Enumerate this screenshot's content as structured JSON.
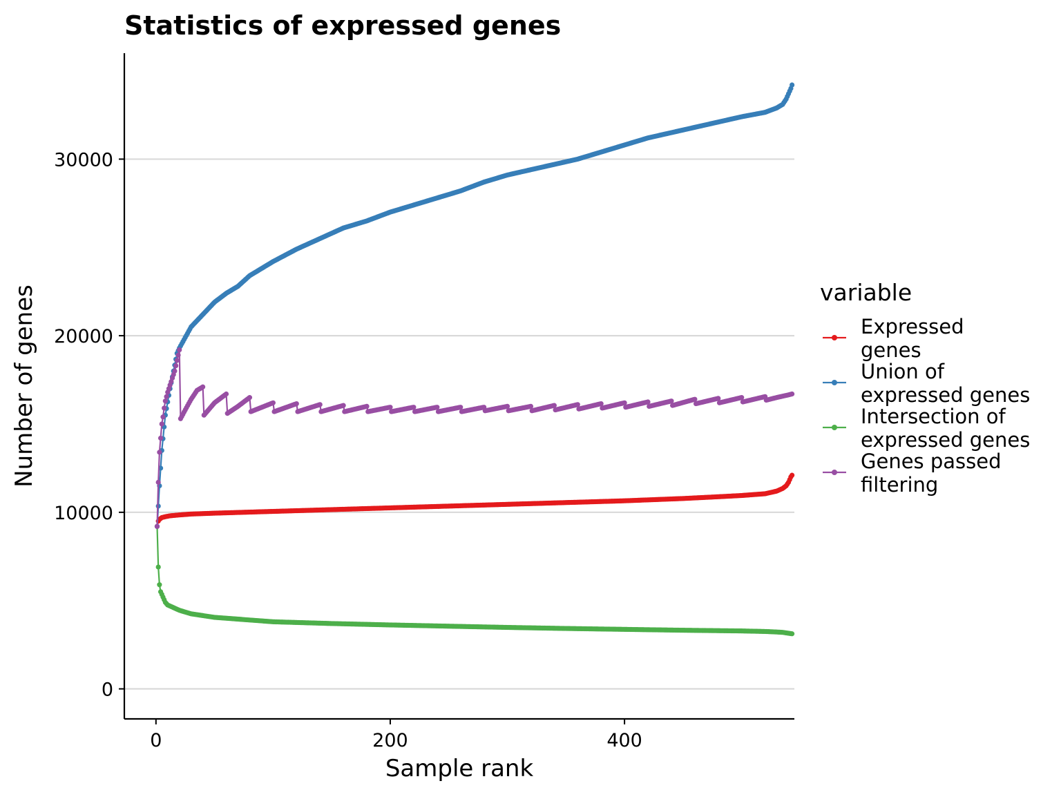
{
  "chart_data": {
    "type": "line",
    "title": "Statistics of expressed genes",
    "xlabel": "Sample rank",
    "ylabel": "Number of genes",
    "xlim": [
      -27,
      545
    ],
    "ylim": [
      -1700,
      36000
    ],
    "x_ticks": [
      0,
      200,
      400
    ],
    "y_ticks": [
      0,
      10000,
      20000,
      30000
    ],
    "x_tick_labels": [
      "0",
      "200",
      "400"
    ],
    "y_tick_labels": [
      "0",
      "10000",
      "20000",
      "30000"
    ],
    "grid": "horizontal major",
    "legend": {
      "title": "variable",
      "position": "right",
      "entries": [
        {
          "label_lines": [
            "Expressed",
            "genes"
          ],
          "color": "#E41A1C"
        },
        {
          "label_lines": [
            "Union of",
            "expressed genes"
          ],
          "color": "#377EB8"
        },
        {
          "label_lines": [
            "Intersection of",
            "expressed genes"
          ],
          "color": "#4DAF4A"
        },
        {
          "label_lines": [
            "Genes passed",
            "filtering"
          ],
          "color": "#984EA3"
        }
      ]
    },
    "n_samples": 543,
    "series": [
      {
        "name": "Expressed genes",
        "color": "#E41A1C",
        "points": [
          [
            1,
            9200
          ],
          [
            2,
            9500
          ],
          [
            3,
            9600
          ],
          [
            5,
            9700
          ],
          [
            8,
            9750
          ],
          [
            12,
            9800
          ],
          [
            20,
            9850
          ],
          [
            30,
            9900
          ],
          [
            50,
            9950
          ],
          [
            100,
            10050
          ],
          [
            150,
            10150
          ],
          [
            200,
            10250
          ],
          [
            250,
            10350
          ],
          [
            300,
            10450
          ],
          [
            350,
            10550
          ],
          [
            400,
            10650
          ],
          [
            450,
            10780
          ],
          [
            480,
            10880
          ],
          [
            500,
            10950
          ],
          [
            520,
            11050
          ],
          [
            530,
            11200
          ],
          [
            535,
            11350
          ],
          [
            538,
            11500
          ],
          [
            540,
            11700
          ],
          [
            541,
            11850
          ],
          [
            542,
            12000
          ],
          [
            543,
            12100
          ]
        ]
      },
      {
        "name": "Union of expressed genes",
        "color": "#377EB8",
        "points": [
          [
            1,
            9200
          ],
          [
            3,
            11500
          ],
          [
            5,
            13500
          ],
          [
            8,
            15500
          ],
          [
            12,
            17000
          ],
          [
            15,
            18000
          ],
          [
            18,
            19000
          ],
          [
            20,
            19300
          ],
          [
            25,
            19900
          ],
          [
            30,
            20500
          ],
          [
            40,
            21200
          ],
          [
            50,
            21900
          ],
          [
            60,
            22400
          ],
          [
            70,
            22800
          ],
          [
            80,
            23400
          ],
          [
            90,
            23800
          ],
          [
            100,
            24200
          ],
          [
            120,
            24900
          ],
          [
            140,
            25500
          ],
          [
            160,
            26100
          ],
          [
            180,
            26500
          ],
          [
            200,
            27000
          ],
          [
            220,
            27400
          ],
          [
            240,
            27800
          ],
          [
            260,
            28200
          ],
          [
            280,
            28700
          ],
          [
            300,
            29100
          ],
          [
            320,
            29400
          ],
          [
            340,
            29700
          ],
          [
            360,
            30000
          ],
          [
            380,
            30400
          ],
          [
            400,
            30800
          ],
          [
            420,
            31200
          ],
          [
            440,
            31500
          ],
          [
            460,
            31800
          ],
          [
            480,
            32100
          ],
          [
            500,
            32400
          ],
          [
            520,
            32650
          ],
          [
            530,
            32900
          ],
          [
            535,
            33100
          ],
          [
            538,
            33400
          ],
          [
            540,
            33700
          ],
          [
            542,
            34000
          ],
          [
            543,
            34200
          ]
        ]
      },
      {
        "name": "Intersection of expressed genes",
        "color": "#4DAF4A",
        "points": [
          [
            1,
            9200
          ],
          [
            2,
            6900
          ],
          [
            3,
            5900
          ],
          [
            4,
            5500
          ],
          [
            6,
            5200
          ],
          [
            8,
            4900
          ],
          [
            10,
            4750
          ],
          [
            15,
            4600
          ],
          [
            20,
            4450
          ],
          [
            30,
            4250
          ],
          [
            50,
            4050
          ],
          [
            80,
            3900
          ],
          [
            100,
            3800
          ],
          [
            150,
            3700
          ],
          [
            200,
            3620
          ],
          [
            250,
            3550
          ],
          [
            300,
            3480
          ],
          [
            350,
            3420
          ],
          [
            400,
            3370
          ],
          [
            450,
            3320
          ],
          [
            500,
            3280
          ],
          [
            520,
            3250
          ],
          [
            530,
            3220
          ],
          [
            535,
            3200
          ],
          [
            540,
            3150
          ],
          [
            543,
            3120
          ]
        ]
      },
      {
        "name": "Genes passed filtering",
        "color": "#984EA3",
        "points": [
          [
            1,
            9200
          ],
          [
            2,
            11700
          ],
          [
            3,
            13400
          ],
          [
            4,
            14200
          ],
          [
            5,
            15000
          ],
          [
            6,
            15400
          ],
          [
            7,
            15900
          ],
          [
            8,
            16300
          ],
          [
            10,
            16800
          ],
          [
            12,
            17200
          ],
          [
            14,
            17600
          ],
          [
            16,
            18000
          ],
          [
            18,
            18600
          ],
          [
            20,
            19200
          ],
          [
            21,
            15300
          ],
          [
            25,
            15800
          ],
          [
            30,
            16400
          ],
          [
            35,
            16900
          ],
          [
            40,
            17100
          ],
          [
            41,
            15500
          ],
          [
            50,
            16200
          ],
          [
            60,
            16700
          ],
          [
            61,
            15600
          ],
          [
            70,
            16000
          ],
          [
            80,
            16500
          ],
          [
            81,
            15700
          ],
          [
            100,
            16200
          ],
          [
            101,
            15700
          ],
          [
            120,
            16150
          ],
          [
            121,
            15700
          ],
          [
            140,
            16100
          ],
          [
            141,
            15700
          ],
          [
            160,
            16050
          ],
          [
            161,
            15700
          ],
          [
            180,
            16000
          ],
          [
            181,
            15700
          ],
          [
            200,
            15950
          ],
          [
            201,
            15700
          ],
          [
            220,
            15950
          ],
          [
            221,
            15700
          ],
          [
            240,
            15950
          ],
          [
            241,
            15700
          ],
          [
            260,
            15950
          ],
          [
            261,
            15700
          ],
          [
            280,
            15950
          ],
          [
            281,
            15750
          ],
          [
            300,
            16000
          ],
          [
            301,
            15750
          ],
          [
            320,
            16000
          ],
          [
            321,
            15750
          ],
          [
            340,
            16050
          ],
          [
            341,
            15800
          ],
          [
            360,
            16100
          ],
          [
            361,
            15850
          ],
          [
            380,
            16150
          ],
          [
            381,
            15900
          ],
          [
            400,
            16200
          ],
          [
            401,
            15950
          ],
          [
            420,
            16250
          ],
          [
            421,
            16000
          ],
          [
            440,
            16300
          ],
          [
            441,
            16050
          ],
          [
            460,
            16400
          ],
          [
            461,
            16150
          ],
          [
            480,
            16450
          ],
          [
            481,
            16200
          ],
          [
            500,
            16500
          ],
          [
            501,
            16250
          ],
          [
            520,
            16550
          ],
          [
            521,
            16350
          ],
          [
            530,
            16500
          ],
          [
            540,
            16650
          ],
          [
            543,
            16700
          ]
        ]
      }
    ]
  }
}
